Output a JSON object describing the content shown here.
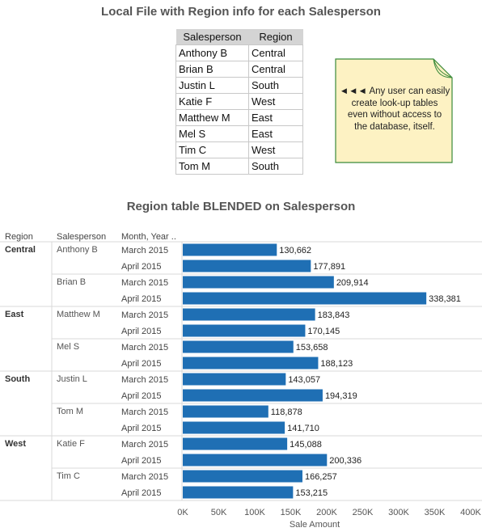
{
  "title_top": "Local File with Region info for each Salesperson",
  "lookup": {
    "headers": [
      "Salesperson",
      "Region"
    ],
    "rows": [
      [
        "Anthony B",
        "Central"
      ],
      [
        "Brian B",
        "Central"
      ],
      [
        "Justin L",
        "South"
      ],
      [
        "Katie F",
        "West"
      ],
      [
        "Matthew M",
        "East"
      ],
      [
        "Mel S",
        "East"
      ],
      [
        "Tim C",
        "West"
      ],
      [
        "Tom M",
        "South"
      ]
    ]
  },
  "note": {
    "lines": [
      "◄◄◄ Any user can easily",
      "create look-up tables",
      "even without access to",
      "the database, itself."
    ],
    "fill": "#fdf2c3",
    "border": "#3a8a3a"
  },
  "title_chart": "Region table BLENDED on Salesperson",
  "chart_data": {
    "type": "bar",
    "orientation": "horizontal",
    "column_headers": [
      "Region",
      "Salesperson",
      "Month, Year .."
    ],
    "xlabel": "Sale Amount",
    "xlim": [
      0,
      400000
    ],
    "xticks": [
      0,
      50000,
      100000,
      150000,
      200000,
      250000,
      300000,
      350000,
      400000
    ],
    "xtick_labels": [
      "0K",
      "50K",
      "100K",
      "150K",
      "200K",
      "250K",
      "300K",
      "350K",
      "400K"
    ],
    "bar_color": "#1f6fb4",
    "groups": [
      {
        "region": "Central",
        "salespeople": [
          {
            "name": "Anthony B",
            "months": [
              {
                "month": "March 2015",
                "value": 130662,
                "label": "130,662"
              },
              {
                "month": "April 2015",
                "value": 177891,
                "label": "177,891"
              }
            ]
          },
          {
            "name": "Brian B",
            "months": [
              {
                "month": "March 2015",
                "value": 209914,
                "label": "209,914"
              },
              {
                "month": "April 2015",
                "value": 338381,
                "label": "338,381"
              }
            ]
          }
        ]
      },
      {
        "region": "East",
        "salespeople": [
          {
            "name": "Matthew M",
            "months": [
              {
                "month": "March 2015",
                "value": 183843,
                "label": "183,843"
              },
              {
                "month": "April 2015",
                "value": 170145,
                "label": "170,145"
              }
            ]
          },
          {
            "name": "Mel S",
            "months": [
              {
                "month": "March 2015",
                "value": 153658,
                "label": "153,658"
              },
              {
                "month": "April 2015",
                "value": 188123,
                "label": "188,123"
              }
            ]
          }
        ]
      },
      {
        "region": "South",
        "salespeople": [
          {
            "name": "Justin L",
            "months": [
              {
                "month": "March 2015",
                "value": 143057,
                "label": "143,057"
              },
              {
                "month": "April 2015",
                "value": 194319,
                "label": "194,319"
              }
            ]
          },
          {
            "name": "Tom M",
            "months": [
              {
                "month": "March 2015",
                "value": 118878,
                "label": "118,878"
              },
              {
                "month": "April 2015",
                "value": 141710,
                "label": "141,710"
              }
            ]
          }
        ]
      },
      {
        "region": "West",
        "salespeople": [
          {
            "name": "Katie F",
            "months": [
              {
                "month": "March 2015",
                "value": 145088,
                "label": "145,088"
              },
              {
                "month": "April 2015",
                "value": 200336,
                "label": "200,336"
              }
            ]
          },
          {
            "name": "Tim C",
            "months": [
              {
                "month": "March 2015",
                "value": 166257,
                "label": "166,257"
              },
              {
                "month": "April 2015",
                "value": 153215,
                "label": "153,215"
              }
            ]
          }
        ]
      }
    ]
  }
}
